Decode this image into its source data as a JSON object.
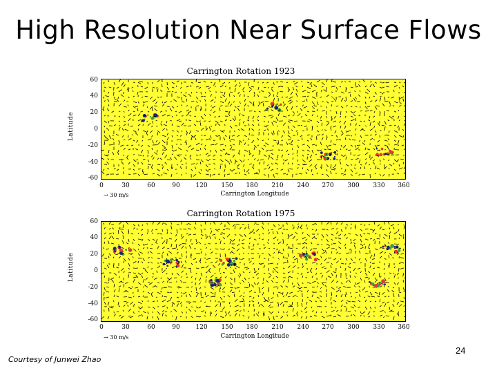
{
  "slide": {
    "title": "High Resolution Near Surface Flows",
    "courtesy": "Courtesy of Junwei Zhao",
    "page_number": "24"
  },
  "colors": {
    "plot_background": "#ffff33",
    "arrows": "#000000",
    "accents": [
      "#1a237e",
      "#e53935",
      "#43a047"
    ]
  },
  "chart_data": [
    {
      "type": "vector-field",
      "title": "Carrington Rotation 1923",
      "xlabel": "Carrington Longitude",
      "ylabel": "Latitude",
      "xlim": [
        0,
        360
      ],
      "ylim": [
        -60,
        60
      ],
      "xticks": [
        "0",
        "30",
        "60",
        "90",
        "120",
        "150",
        "180",
        "210",
        "240",
        "270",
        "300",
        "330",
        "360"
      ],
      "yticks": [
        "60",
        "40",
        "20",
        "0",
        "-20",
        "-40",
        "-60"
      ],
      "scale_label": "30 m/s",
      "grid": false
    },
    {
      "type": "vector-field",
      "title": "Carrington Rotation 1975",
      "xlabel": "Carrington Longitude",
      "ylabel": "Latitude",
      "xlim": [
        0,
        360
      ],
      "ylim": [
        -60,
        60
      ],
      "xticks": [
        "0",
        "30",
        "60",
        "90",
        "120",
        "150",
        "180",
        "210",
        "240",
        "270",
        "300",
        "330",
        "360"
      ],
      "yticks": [
        "60",
        "40",
        "20",
        "0",
        "-20",
        "-40",
        "-60"
      ],
      "scale_label": "30 m/s",
      "grid": false
    }
  ]
}
